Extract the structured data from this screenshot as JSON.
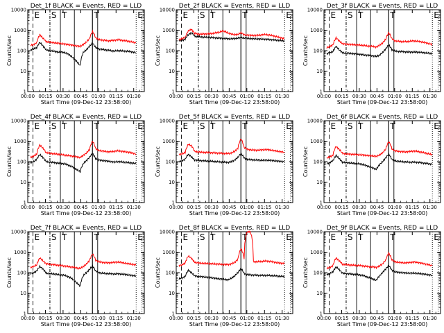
{
  "figure": {
    "title": "",
    "colors": {
      "events": "#000000",
      "lld": "#ff0000",
      "axes": "#000000"
    }
  },
  "chart_data": [
    {
      "type": "line",
      "title": "Det_1f BLACK = Events, RED = LLD",
      "xlabel": "Start Time (09-Dec-12 23:58:00)",
      "ylabel": "Counts/sec",
      "yscale": "log",
      "ylim": [
        1,
        10000
      ],
      "xlim": [
        0,
        100
      ],
      "x_ticks": [
        "00:00",
        "00:15",
        "00:30",
        "00:45",
        "01:00",
        "01:15",
        "01:30"
      ],
      "y_ticks": [
        "1",
        "10",
        "100",
        "1000",
        "10000"
      ],
      "markers": [
        "E",
        "S",
        "T",
        "T",
        "E"
      ],
      "series": [
        {
          "name": "Events",
          "color": "#000000",
          "values": [
            110,
            120,
            140,
            250,
            170,
            110,
            100,
            98,
            90,
            85,
            85,
            80,
            70,
            55,
            40,
            28,
            18,
            80,
            110,
            160,
            230,
            140,
            120,
            115,
            110,
            105,
            100,
            95,
            100,
            100,
            95,
            95,
            90,
            85,
            80
          ]
        },
        {
          "name": "LLD",
          "color": "#ff0000",
          "values": [
            180,
            200,
            240,
            600,
            400,
            280,
            260,
            250,
            240,
            230,
            220,
            210,
            200,
            190,
            180,
            170,
            160,
            200,
            260,
            380,
            850,
            420,
            350,
            330,
            320,
            300,
            310,
            320,
            340,
            330,
            310,
            300,
            280,
            260,
            240
          ]
        }
      ]
    },
    {
      "type": "line",
      "title": "Det_2f BLACK = Events, RED = LLD",
      "xlabel": "Start Time (09-Dec-12 23:58:00)",
      "ylabel": "Counts/sec",
      "yscale": "log",
      "ylim": [
        1,
        10000
      ],
      "xlim": [
        0,
        100
      ],
      "x_ticks": [
        "00:00",
        "00:15",
        "00:30",
        "00:45",
        "01:00",
        "01:15",
        "01:30"
      ],
      "y_ticks": [
        "1",
        "10",
        "100",
        "1000",
        "10000"
      ],
      "markers": [
        "E",
        "S",
        "T",
        "T",
        "E"
      ],
      "series": [
        {
          "name": "Events",
          "color": "#000000",
          "values": [
            300,
            320,
            360,
            600,
            750,
            520,
            480,
            470,
            460,
            450,
            440,
            430,
            420,
            410,
            400,
            390,
            380,
            380,
            390,
            410,
            430,
            410,
            400,
            390,
            380,
            380,
            370,
            370,
            360,
            350,
            340,
            330,
            320,
            310,
            300
          ]
        },
        {
          "name": "LLD",
          "color": "#ff0000",
          "values": [
            350,
            380,
            450,
            900,
            1100,
            700,
            650,
            640,
            650,
            660,
            680,
            700,
            750,
            800,
            900,
            850,
            700,
            650,
            600,
            620,
            750,
            600,
            580,
            560,
            550,
            560,
            570,
            600,
            620,
            580,
            550,
            500,
            460,
            420,
            380
          ]
        }
      ]
    },
    {
      "type": "line",
      "title": "Det_3f BLACK = Events, RED = LLD",
      "xlabel": "Start Time (09-Dec-12 23:58:00)",
      "ylabel": "Counts/sec",
      "yscale": "log",
      "ylim": [
        1,
        10000
      ],
      "xlim": [
        0,
        100
      ],
      "x_ticks": [
        "00:00",
        "00:15",
        "00:30",
        "00:45",
        "01:00",
        "01:15",
        "01:30"
      ],
      "y_ticks": [
        "1",
        "10",
        "100",
        "1000",
        "10000"
      ],
      "markers": [
        "E",
        "S",
        "T",
        "T",
        "E"
      ],
      "series": [
        {
          "name": "Events",
          "color": "#000000",
          "values": [
            70,
            80,
            90,
            160,
            110,
            80,
            75,
            75,
            72,
            70,
            68,
            65,
            62,
            60,
            58,
            55,
            52,
            60,
            80,
            120,
            190,
            110,
            95,
            92,
            90,
            88,
            86,
            85,
            86,
            85,
            84,
            80,
            78,
            75,
            72
          ]
        },
        {
          "name": "LLD",
          "color": "#ff0000",
          "values": [
            140,
            160,
            190,
            420,
            300,
            220,
            210,
            205,
            200,
            195,
            190,
            185,
            180,
            170,
            165,
            160,
            150,
            180,
            240,
            350,
            750,
            380,
            300,
            290,
            280,
            275,
            280,
            290,
            300,
            290,
            280,
            260,
            240,
            220,
            200
          ]
        }
      ]
    },
    {
      "type": "line",
      "title": "Det_4f BLACK = Events, RED = LLD",
      "xlabel": "Start Time (09-Dec-12 23:58:00)",
      "ylabel": "Counts/sec",
      "yscale": "log",
      "ylim": [
        1,
        10000
      ],
      "xlim": [
        0,
        100
      ],
      "x_ticks": [
        "00:00",
        "00:15",
        "00:30",
        "00:45",
        "01:00",
        "01:15",
        "01:30"
      ],
      "y_ticks": [
        "1",
        "10",
        "100",
        "1000",
        "10000"
      ],
      "markers": [
        "E",
        "S",
        "T",
        "T",
        "E"
      ],
      "series": [
        {
          "name": "Events",
          "color": "#000000",
          "values": [
            90,
            100,
            130,
            220,
            160,
            100,
            95,
            92,
            88,
            84,
            82,
            78,
            70,
            60,
            50,
            40,
            32,
            80,
            110,
            160,
            250,
            140,
            120,
            115,
            110,
            105,
            100,
            95,
            100,
            98,
            95,
            92,
            88,
            84,
            80
          ]
        },
        {
          "name": "LLD",
          "color": "#ff0000",
          "values": [
            160,
            190,
            230,
            650,
            450,
            280,
            260,
            250,
            240,
            230,
            220,
            210,
            200,
            190,
            180,
            170,
            160,
            200,
            260,
            380,
            1000,
            430,
            350,
            330,
            320,
            300,
            310,
            320,
            340,
            330,
            310,
            300,
            280,
            260,
            240
          ]
        }
      ]
    },
    {
      "type": "line",
      "title": "Det_5f BLACK = Events, RED = LLD",
      "xlabel": "Start Time (09-Dec-12 23:58:00)",
      "ylabel": "Counts/sec",
      "yscale": "log",
      "ylim": [
        1,
        10000
      ],
      "xlim": [
        0,
        100
      ],
      "x_ticks": [
        "00:00",
        "00:15",
        "00:30",
        "00:45",
        "01:00",
        "01:15",
        "01:30"
      ],
      "y_ticks": [
        "1",
        "10",
        "100",
        "1000",
        "10000"
      ],
      "markers": [
        "E",
        "S",
        "T",
        "T",
        "E"
      ],
      "series": [
        {
          "name": "Events",
          "color": "#000000",
          "values": [
            100,
            110,
            130,
            230,
            170,
            120,
            115,
            112,
            110,
            108,
            106,
            104,
            100,
            98,
            96,
            94,
            92,
            100,
            120,
            160,
            250,
            150,
            130,
            125,
            122,
            120,
            118,
            116,
            118,
            116,
            114,
            110,
            106,
            102,
            100
          ]
        },
        {
          "name": "LLD",
          "color": "#ff0000",
          "values": [
            220,
            240,
            280,
            700,
            600,
            320,
            300,
            290,
            285,
            280,
            275,
            270,
            265,
            260,
            255,
            250,
            250,
            270,
            320,
            450,
            1300,
            500,
            400,
            380,
            370,
            360,
            370,
            380,
            390,
            380,
            360,
            340,
            320,
            300,
            290
          ]
        }
      ]
    },
    {
      "type": "line",
      "title": "Det_6f BLACK = Events, RED = LLD",
      "xlabel": "Start Time (09-Dec-12 23:58:00)",
      "ylabel": "Counts/sec",
      "yscale": "log",
      "ylim": [
        1,
        10000
      ],
      "xlim": [
        0,
        100
      ],
      "x_ticks": [
        "00:00",
        "00:15",
        "00:30",
        "00:45",
        "01:00",
        "01:15",
        "01:30"
      ],
      "y_ticks": [
        "1",
        "10",
        "100",
        "1000",
        "10000"
      ],
      "markers": [
        "E",
        "S",
        "T",
        "T",
        "E"
      ],
      "series": [
        {
          "name": "Events",
          "color": "#000000",
          "values": [
            80,
            90,
            110,
            200,
            140,
            95,
            90,
            88,
            85,
            82,
            80,
            76,
            70,
            62,
            55,
            48,
            42,
            70,
            100,
            150,
            230,
            130,
            110,
            105,
            100,
            98,
            96,
            94,
            95,
            93,
            90,
            86,
            82,
            78,
            75
          ]
        },
        {
          "name": "LLD",
          "color": "#ff0000",
          "values": [
            150,
            170,
            210,
            550,
            400,
            260,
            240,
            235,
            230,
            225,
            220,
            215,
            210,
            200,
            195,
            190,
            180,
            210,
            270,
            400,
            950,
            420,
            340,
            320,
            310,
            300,
            305,
            315,
            330,
            320,
            300,
            280,
            260,
            240,
            220
          ]
        }
      ]
    },
    {
      "type": "line",
      "title": "Det_7f BLACK = Events, RED = LLD",
      "xlabel": "Start Time (09-Dec-12 23:58:00)",
      "ylabel": "Counts/sec",
      "yscale": "log",
      "ylim": [
        1,
        10000
      ],
      "xlim": [
        0,
        100
      ],
      "x_ticks": [
        "00:00",
        "00:15",
        "00:30",
        "00:45",
        "01:00",
        "01:15",
        "01:30"
      ],
      "y_ticks": [
        "1",
        "10",
        "100",
        "1000",
        "10000"
      ],
      "markers": [
        "E",
        "S",
        "T",
        "T",
        "E"
      ],
      "series": [
        {
          "name": "Events",
          "color": "#000000",
          "values": [
            90,
            100,
            120,
            200,
            150,
            95,
            90,
            88,
            85,
            80,
            78,
            74,
            65,
            55,
            42,
            30,
            22,
            70,
            100,
            140,
            210,
            120,
            100,
            95,
            92,
            90,
            88,
            86,
            88,
            86,
            84,
            80,
            76,
            72,
            70
          ]
        },
        {
          "name": "LLD",
          "color": "#ff0000",
          "values": [
            180,
            200,
            240,
            520,
            380,
            270,
            260,
            250,
            240,
            230,
            220,
            210,
            200,
            190,
            180,
            170,
            160,
            200,
            260,
            380,
            820,
            410,
            340,
            320,
            310,
            300,
            310,
            320,
            330,
            320,
            300,
            280,
            270,
            250,
            240
          ]
        }
      ]
    },
    {
      "type": "line",
      "title": "Det_8f BLACK = Events, RED = LLD",
      "xlabel": "Start Time (09-Dec-12 23:58:00)",
      "ylabel": "Counts/sec",
      "yscale": "log",
      "ylim": [
        1,
        10000
      ],
      "xlim": [
        0,
        100
      ],
      "x_ticks": [
        "00:00",
        "00:15",
        "00:30",
        "00:45",
        "01:00",
        "01:15",
        "01:30"
      ],
      "y_ticks": [
        "1",
        "10",
        "100",
        "1000",
        "10000"
      ],
      "markers": [
        "E",
        "S",
        "T",
        "T",
        "E"
      ],
      "series": [
        {
          "name": "Events",
          "color": "#000000",
          "values": [
            50,
            55,
            65,
            130,
            100,
            70,
            66,
            64,
            62,
            60,
            58,
            55,
            52,
            50,
            48,
            46,
            45,
            55,
            70,
            100,
            160,
            90,
            80,
            78,
            76,
            75,
            74,
            73,
            74,
            73,
            72,
            70,
            68,
            66,
            65
          ]
        },
        {
          "name": "LLD",
          "color": "#ff0000",
          "values": [
            220,
            240,
            290,
            650,
            500,
            320,
            300,
            290,
            285,
            280,
            275,
            270,
            265,
            260,
            255,
            250,
            250,
            270,
            320,
            450,
            1500,
            500,
            10000,
            10000,
            350,
            340,
            350,
            360,
            370,
            360,
            340,
            320,
            300,
            290,
            280
          ]
        }
      ]
    },
    {
      "type": "line",
      "title": "Det_9f BLACK = Events, RED = LLD",
      "xlabel": "Start Time (09-Dec-12 23:58:00)",
      "ylabel": "Counts/sec",
      "yscale": "log",
      "ylim": [
        1,
        10000
      ],
      "xlim": [
        0,
        100
      ],
      "x_ticks": [
        "00:00",
        "00:15",
        "00:30",
        "00:45",
        "01:00",
        "01:15",
        "01:30"
      ],
      "y_ticks": [
        "1",
        "10",
        "100",
        "1000",
        "10000"
      ],
      "markers": [
        "E",
        "S",
        "T",
        "T",
        "E"
      ],
      "series": [
        {
          "name": "Events",
          "color": "#000000",
          "values": [
            80,
            90,
            110,
            190,
            140,
            95,
            90,
            88,
            85,
            82,
            80,
            76,
            70,
            62,
            55,
            48,
            42,
            70,
            100,
            150,
            220,
            130,
            110,
            105,
            100,
            98,
            96,
            94,
            95,
            93,
            90,
            86,
            82,
            78,
            75
          ]
        },
        {
          "name": "LLD",
          "color": "#ff0000",
          "values": [
            160,
            180,
            220,
            520,
            380,
            260,
            250,
            240,
            235,
            230,
            225,
            220,
            210,
            200,
            195,
            190,
            180,
            210,
            270,
            400,
            900,
            420,
            340,
            320,
            310,
            300,
            305,
            315,
            330,
            320,
            300,
            280,
            260,
            240,
            220
          ]
        }
      ]
    }
  ]
}
